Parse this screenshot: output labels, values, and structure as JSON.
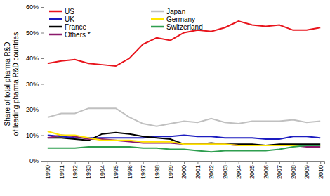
{
  "chart_data": {
    "type": "line",
    "y_label": [
      "Share of total pharma R&D",
      "of leading pharma R&D countries"
    ],
    "categories": [
      "1990",
      "1991",
      "1992",
      "1993",
      "1994",
      "1995",
      "1996",
      "1997",
      "1998",
      "1999",
      "2000",
      "2001",
      "2002",
      "2003",
      "2004",
      "2005",
      "2006",
      "2007",
      "2008",
      "2009",
      "2010"
    ],
    "ylim": [
      0,
      60
    ],
    "yticks": [
      {
        "value": 0,
        "label": "0%"
      },
      {
        "value": 10,
        "label": "10%"
      },
      {
        "value": 20,
        "label": "20%"
      },
      {
        "value": 30,
        "label": "30%"
      },
      {
        "value": 40,
        "label": "40%"
      },
      {
        "value": 50,
        "label": "50%"
      },
      {
        "value": 60,
        "label": "60%"
      }
    ],
    "grid": false,
    "legend": "upper left",
    "series": [
      {
        "name": "US",
        "color": "#e8141c",
        "values": [
          38,
          39,
          39.5,
          38,
          37.5,
          37,
          40,
          45.5,
          48,
          47,
          50,
          51,
          50.5,
          52,
          54.5,
          53,
          52.5,
          53,
          51,
          51,
          52
        ]
      },
      {
        "name": "UK",
        "color": "#1c1cc0",
        "values": [
          10,
          9.5,
          9,
          9,
          9,
          9,
          9,
          9,
          9.5,
          9.5,
          10,
          9.5,
          9.5,
          9,
          9,
          9,
          8.5,
          8.5,
          9.5,
          9.5,
          9
        ]
      },
      {
        "name": "France",
        "color": "#000000",
        "values": [
          9,
          9,
          8.5,
          8,
          10.5,
          11,
          10.5,
          9.5,
          9,
          8.5,
          6.5,
          6.5,
          7,
          6.5,
          6.5,
          6.5,
          6,
          6.5,
          6.5,
          6.5,
          6.5
        ]
      },
      {
        "name": "Others *",
        "color": "#8b1a6b",
        "values": [
          9,
          10,
          9.5,
          8.5,
          8.5,
          8,
          7.5,
          7,
          7,
          7,
          6.5,
          6.5,
          6.5,
          6.5,
          6,
          6,
          6,
          6,
          6,
          5.5,
          5.5
        ]
      },
      {
        "name": "Japan",
        "color": "#c0c0c0",
        "values": [
          17,
          18.5,
          18.5,
          20.5,
          20.5,
          20.5,
          17,
          14.5,
          13.5,
          14.5,
          15.5,
          15,
          16.5,
          15,
          14.5,
          15.5,
          15.5,
          15.5,
          16,
          15,
          15.5
        ]
      },
      {
        "name": "Germany",
        "color": "#ffe600",
        "values": [
          11.5,
          10,
          10,
          9,
          8,
          8,
          8,
          7.5,
          7.5,
          7.5,
          6.5,
          6.5,
          6.5,
          6.5,
          6,
          6,
          6,
          6,
          6,
          6,
          6
        ]
      },
      {
        "name": "Switzerland",
        "color": "#2e9e4f",
        "values": [
          5,
          5,
          5,
          5.5,
          5.5,
          5.5,
          5.5,
          5,
          5,
          4.5,
          4.5,
          4,
          3.5,
          4,
          4,
          4,
          4,
          4.5,
          5.5,
          6,
          6
        ]
      }
    ]
  }
}
